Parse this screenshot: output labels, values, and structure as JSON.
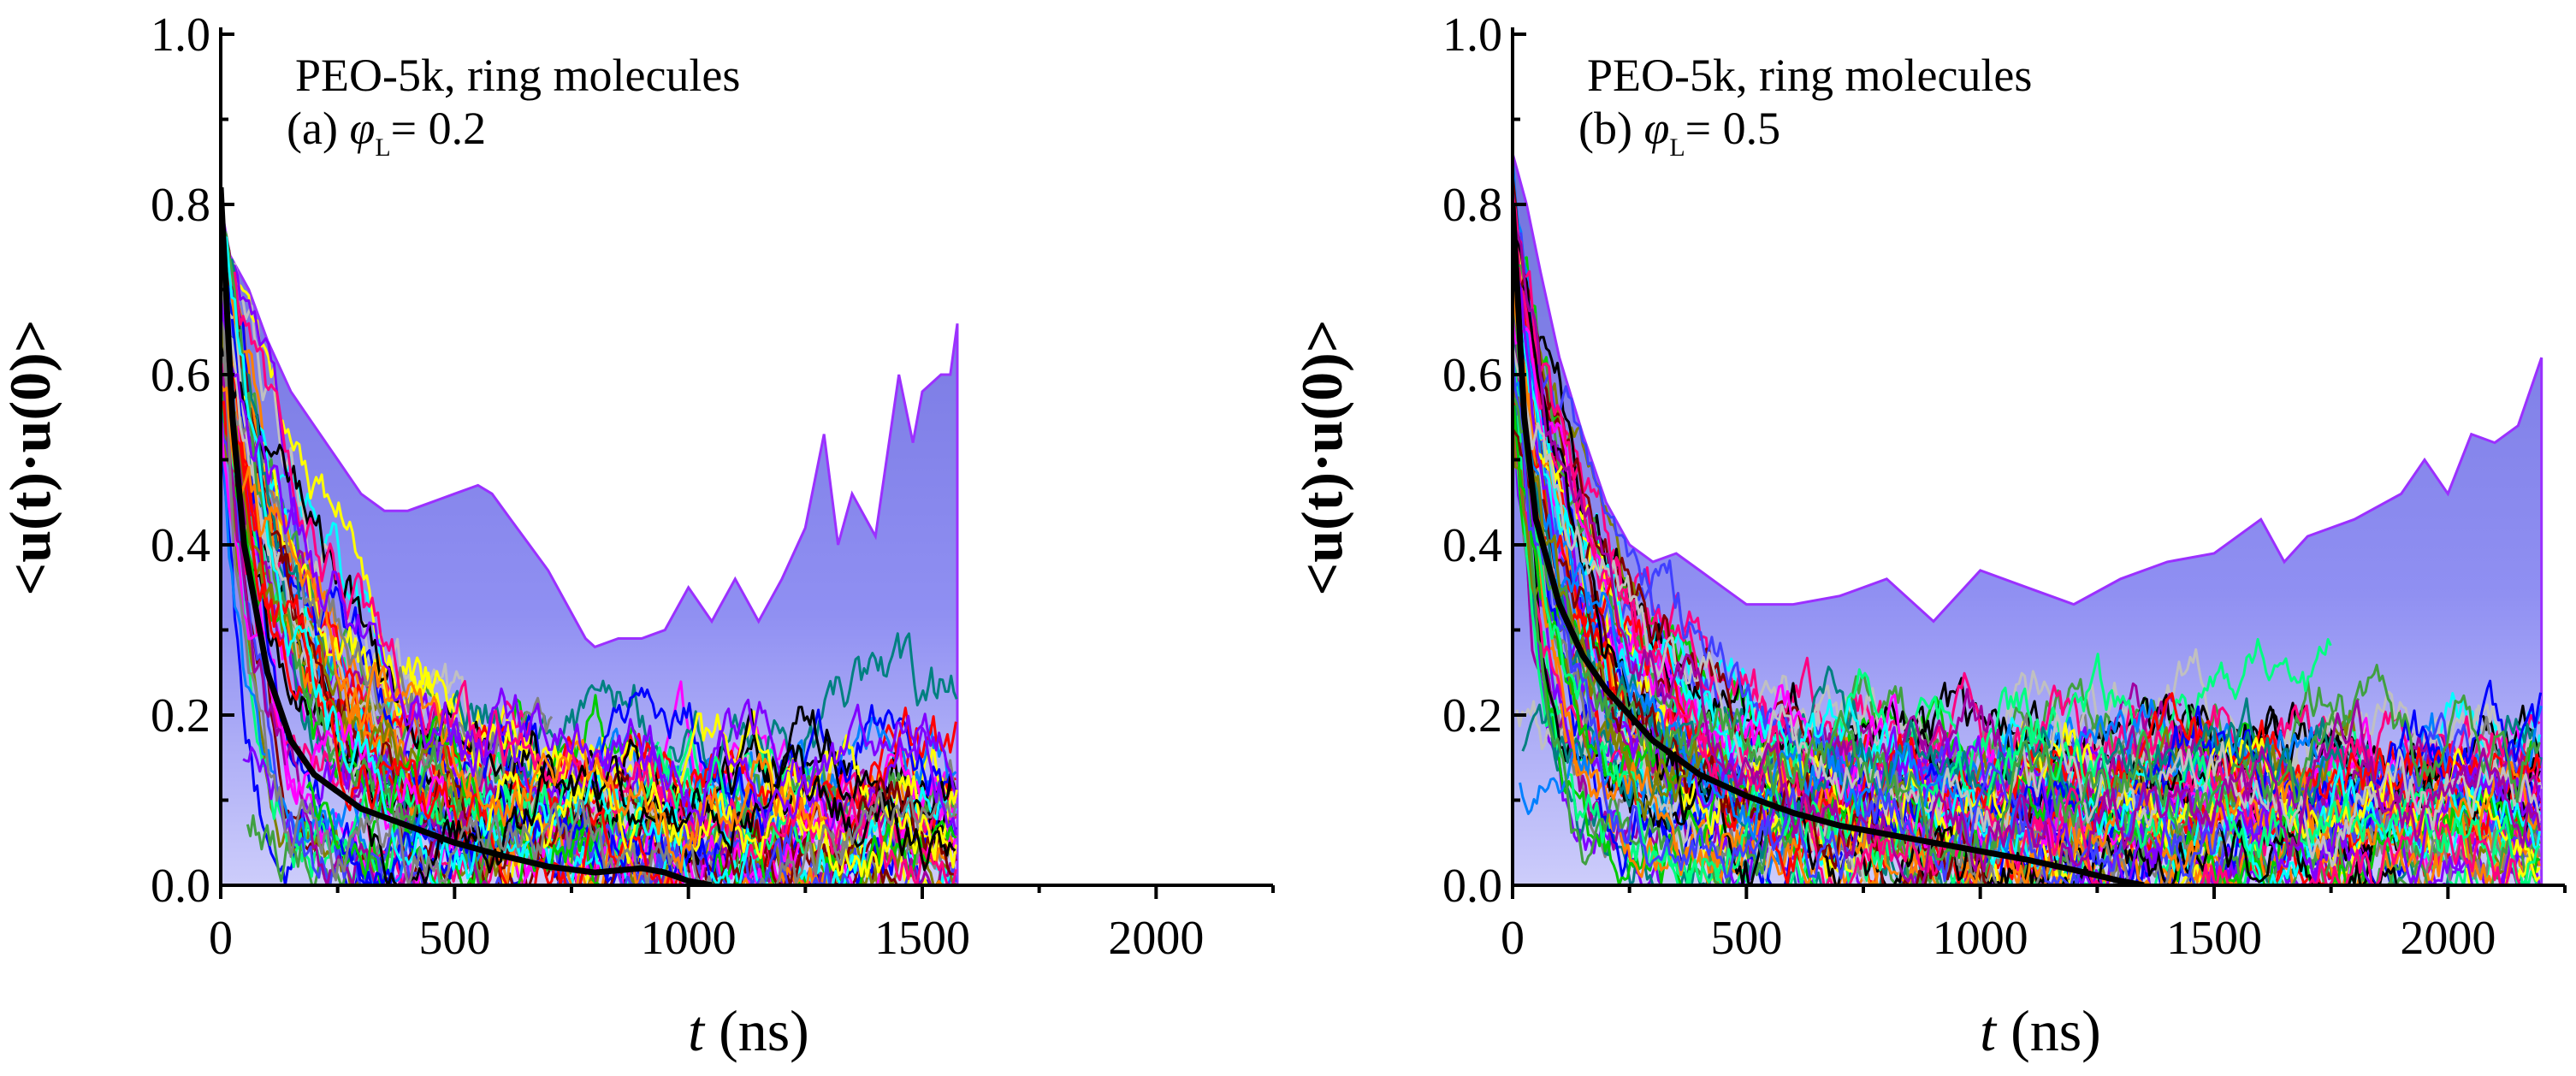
{
  "chart_data": [
    {
      "type": "line",
      "panel_label": "(a)",
      "title": "PEO-5k, ring molecules",
      "annotation_prefix": "(a) ",
      "annotation_phi": "φ",
      "annotation_sub": "L",
      "annotation_value": "= 0.2",
      "xlabel_italic": "t",
      "xlabel_unit": " (ns)",
      "ylabel": "<u(t)·u(0)>",
      "xlim": [
        0,
        2250
      ],
      "ylim": [
        0.0,
        1.0
      ],
      "x_ticks": [
        0,
        500,
        1000,
        1500,
        2000
      ],
      "x_tick_labels": [
        "0",
        "500",
        "1000",
        "1500",
        "2000"
      ],
      "y_ticks": [
        0.0,
        0.2,
        0.4,
        0.6,
        0.8,
        1.0
      ],
      "y_tick_labels": [
        "0.0",
        "0.2",
        "0.4",
        "0.6",
        "0.8",
        "1.0"
      ],
      "envelope": {
        "x": [
          0,
          20,
          60,
          100,
          150,
          200,
          250,
          300,
          350,
          400,
          450,
          500,
          550,
          580,
          620,
          660,
          700,
          740,
          780,
          800,
          850,
          900,
          950,
          1000,
          1050,
          1100,
          1150,
          1200,
          1250,
          1290,
          1320,
          1350,
          1400,
          1450,
          1480,
          1500,
          1540,
          1560,
          1575
        ],
        "upper": [
          0.8,
          0.74,
          0.7,
          0.64,
          0.58,
          0.54,
          0.5,
          0.46,
          0.44,
          0.44,
          0.45,
          0.46,
          0.47,
          0.46,
          0.43,
          0.4,
          0.37,
          0.33,
          0.29,
          0.28,
          0.29,
          0.29,
          0.3,
          0.35,
          0.31,
          0.36,
          0.31,
          0.36,
          0.42,
          0.53,
          0.4,
          0.46,
          0.41,
          0.6,
          0.52,
          0.58,
          0.6,
          0.6,
          0.66
        ]
      },
      "mean_curve": {
        "x": [
          0,
          25,
          50,
          100,
          150,
          200,
          300,
          400,
          500,
          600,
          700,
          800,
          900,
          950,
          1000,
          1050
        ],
        "y": [
          0.82,
          0.55,
          0.4,
          0.25,
          0.17,
          0.13,
          0.09,
          0.07,
          0.05,
          0.035,
          0.022,
          0.015,
          0.02,
          0.015,
          0.005,
          0.0
        ]
      },
      "trajectory_count": 70,
      "t_end": 1575,
      "colors": [
        "#ff00ff",
        "#00cc00",
        "#0000ff",
        "#ff0000",
        "#00ffff",
        "#ffff00",
        "#000000",
        "#808080",
        "#ff8000",
        "#8000ff",
        "#008080",
        "#800000",
        "#00ff80",
        "#ff0080",
        "#0080ff",
        "#808000",
        "#c0c0c0",
        "#4040ff",
        "#40a040",
        "#a000a0"
      ]
    },
    {
      "type": "line",
      "panel_label": "(b)",
      "title": "PEO-5k, ring molecules",
      "annotation_prefix": "(b) ",
      "annotation_phi": "φ",
      "annotation_sub": "L",
      "annotation_value": "= 0.5",
      "xlabel_italic": "t",
      "xlabel_unit": " (ns)",
      "ylabel": "<u(t)·u(0)>",
      "xlim": [
        0,
        2250
      ],
      "ylim": [
        0.0,
        1.0
      ],
      "x_ticks": [
        0,
        500,
        1000,
        1500,
        2000
      ],
      "x_tick_labels": [
        "0",
        "500",
        "1000",
        "1500",
        "2000"
      ],
      "y_ticks": [
        0.0,
        0.2,
        0.4,
        0.6,
        0.8,
        1.0
      ],
      "y_tick_labels": [
        "0.0",
        "0.2",
        "0.4",
        "0.6",
        "0.8",
        "1.0"
      ],
      "envelope": {
        "x": [
          0,
          30,
          60,
          100,
          150,
          200,
          250,
          300,
          350,
          400,
          450,
          500,
          600,
          700,
          800,
          900,
          1000,
          1100,
          1200,
          1300,
          1400,
          1500,
          1600,
          1650,
          1700,
          1800,
          1900,
          1950,
          2000,
          2050,
          2100,
          2150,
          2200
        ],
        "upper": [
          0.86,
          0.8,
          0.72,
          0.62,
          0.53,
          0.45,
          0.4,
          0.38,
          0.39,
          0.37,
          0.35,
          0.33,
          0.33,
          0.34,
          0.36,
          0.31,
          0.37,
          0.35,
          0.33,
          0.36,
          0.38,
          0.39,
          0.43,
          0.38,
          0.41,
          0.43,
          0.46,
          0.5,
          0.46,
          0.53,
          0.52,
          0.54,
          0.62
        ]
      },
      "mean_curve": {
        "x": [
          0,
          25,
          50,
          100,
          150,
          200,
          300,
          400,
          500,
          600,
          700,
          800,
          900,
          1000,
          1100,
          1200,
          1300,
          1350
        ],
        "y": [
          0.8,
          0.55,
          0.43,
          0.33,
          0.27,
          0.23,
          0.17,
          0.13,
          0.105,
          0.085,
          0.07,
          0.06,
          0.05,
          0.04,
          0.03,
          0.018,
          0.005,
          0.0
        ]
      },
      "trajectory_count": 80,
      "t_end": 2200,
      "colors": [
        "#ff00ff",
        "#00cc00",
        "#0000ff",
        "#ff0000",
        "#00ffff",
        "#ffff00",
        "#000000",
        "#808080",
        "#ff8000",
        "#8000ff",
        "#008080",
        "#800000",
        "#00ff80",
        "#ff0080",
        "#0080ff",
        "#808000",
        "#c0c0c0",
        "#4040ff",
        "#40a040",
        "#a000a0"
      ]
    }
  ]
}
